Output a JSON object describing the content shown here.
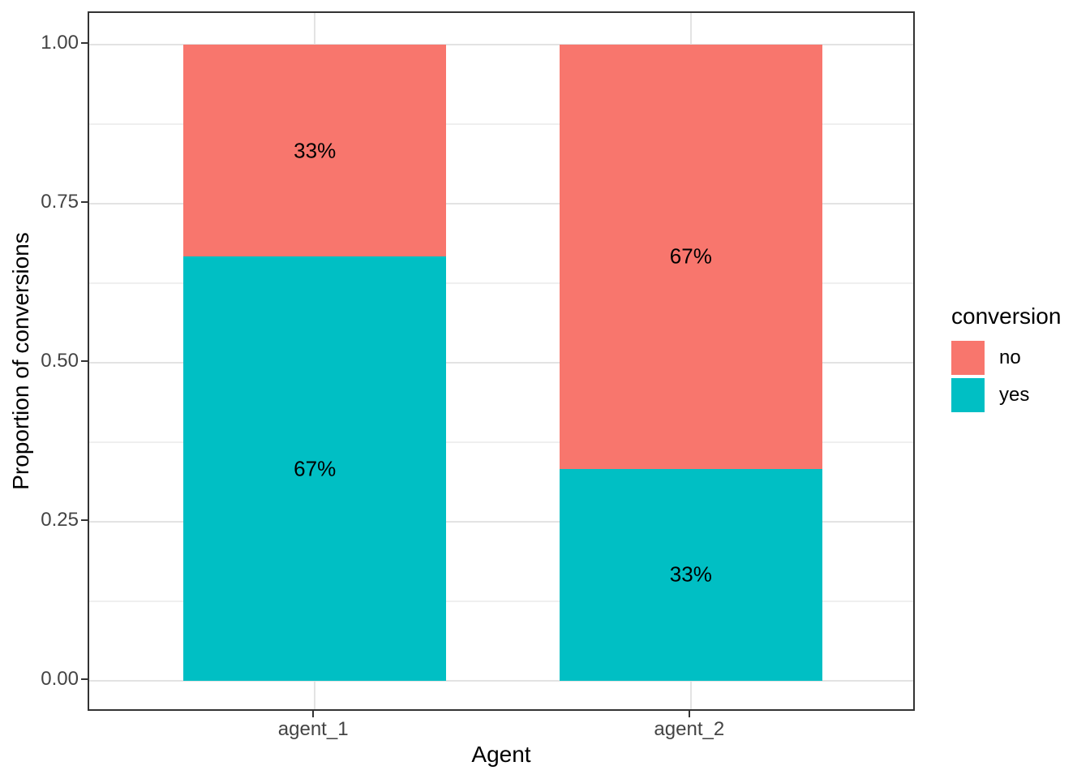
{
  "axes": {
    "x_title": "Agent",
    "y_title": "Proportion of conversions"
  },
  "legend": {
    "title": "conversion",
    "entries": [
      {
        "label": "no",
        "color": "#F8766D"
      },
      {
        "label": "yes",
        "color": "#00BFC4"
      }
    ]
  },
  "chart_data": {
    "type": "bar",
    "subtype": "stacked",
    "title": "",
    "xlabel": "Agent",
    "ylabel": "Proportion of conversions",
    "categories": [
      "agent_1",
      "agent_2"
    ],
    "series": [
      {
        "name": "yes",
        "color": "#00BFC4",
        "values": [
          0.667,
          0.333
        ],
        "data_labels": [
          "67%",
          "33%"
        ]
      },
      {
        "name": "no",
        "color": "#F8766D",
        "values": [
          0.333,
          0.667
        ],
        "data_labels": [
          "33%",
          "67%"
        ]
      }
    ],
    "stack_order_bottom_to_top": [
      "yes",
      "no"
    ],
    "ylim": [
      0,
      1
    ],
    "yticks": [
      {
        "value": 0.0,
        "label": "0.00"
      },
      {
        "value": 0.25,
        "label": "0.25"
      },
      {
        "value": 0.5,
        "label": "0.50"
      },
      {
        "value": 0.75,
        "label": "0.75"
      },
      {
        "value": 1.0,
        "label": "1.00"
      }
    ],
    "minor_yticks": [
      0.125,
      0.375,
      0.625,
      0.875
    ],
    "grid": true,
    "legend_position": "right",
    "colors": {
      "major_grid": "#E3E3E3",
      "minor_grid": "#EFEFEF",
      "panel_border": "#333333",
      "axis_text": "#444444",
      "title_text": "#000000",
      "background": "#FFFFFF"
    }
  }
}
